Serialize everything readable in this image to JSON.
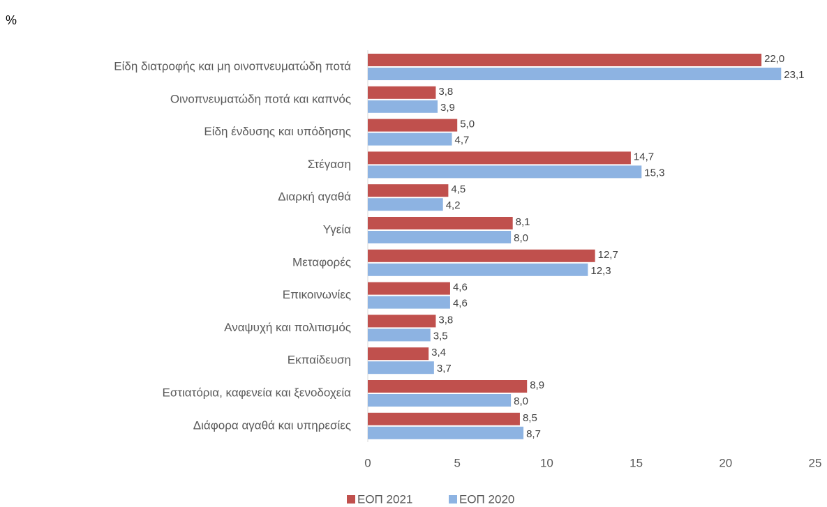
{
  "chart_data": {
    "type": "bar",
    "orientation": "horizontal",
    "axis_label": "%",
    "categories": [
      "Είδη διατροφής και μη οινοπνευματώδη ποτά",
      "Οινοπνευματώδη ποτά και καπνός",
      "Είδη ένδυσης και υπόδησης",
      "Στέγαση",
      "Διαρκή αγαθά",
      "Υγεία",
      "Μεταφορές",
      "Επικοινωνίες",
      "Αναψυχή και πολιτισμός",
      "Εκπαίδευση",
      "Εστιατόρια, καφενεία  και ξενοδοχεία",
      "Διάφορα αγαθά και υπηρεσίες"
    ],
    "series": [
      {
        "name": "ΕΟΠ 2021",
        "color": "#c0504d",
        "values": [
          22.0,
          3.8,
          5.0,
          14.7,
          4.5,
          8.1,
          12.7,
          4.6,
          3.8,
          3.4,
          8.9,
          8.5
        ],
        "value_labels": [
          "22,0",
          "3,8",
          "5,0",
          "14,7",
          "4,5",
          "8,1",
          "12,7",
          "4,6",
          "3,8",
          "3,4",
          "8,9",
          "8,5"
        ]
      },
      {
        "name": "ΕΟΠ 2020",
        "color": "#8db3e2",
        "values": [
          23.1,
          3.9,
          4.7,
          15.3,
          4.2,
          8.0,
          12.3,
          4.6,
          3.5,
          3.7,
          8.0,
          8.7
        ],
        "value_labels": [
          "23,1",
          "3,9",
          "4,7",
          "15,3",
          "4,2",
          "8,0",
          "12,3",
          "4,6",
          "3,5",
          "3,7",
          "8,0",
          "8,7"
        ]
      }
    ],
    "xlim": [
      0,
      25
    ],
    "xticks": [
      0,
      5,
      10,
      15,
      20,
      25
    ],
    "grid": false,
    "legend": "bottom"
  }
}
